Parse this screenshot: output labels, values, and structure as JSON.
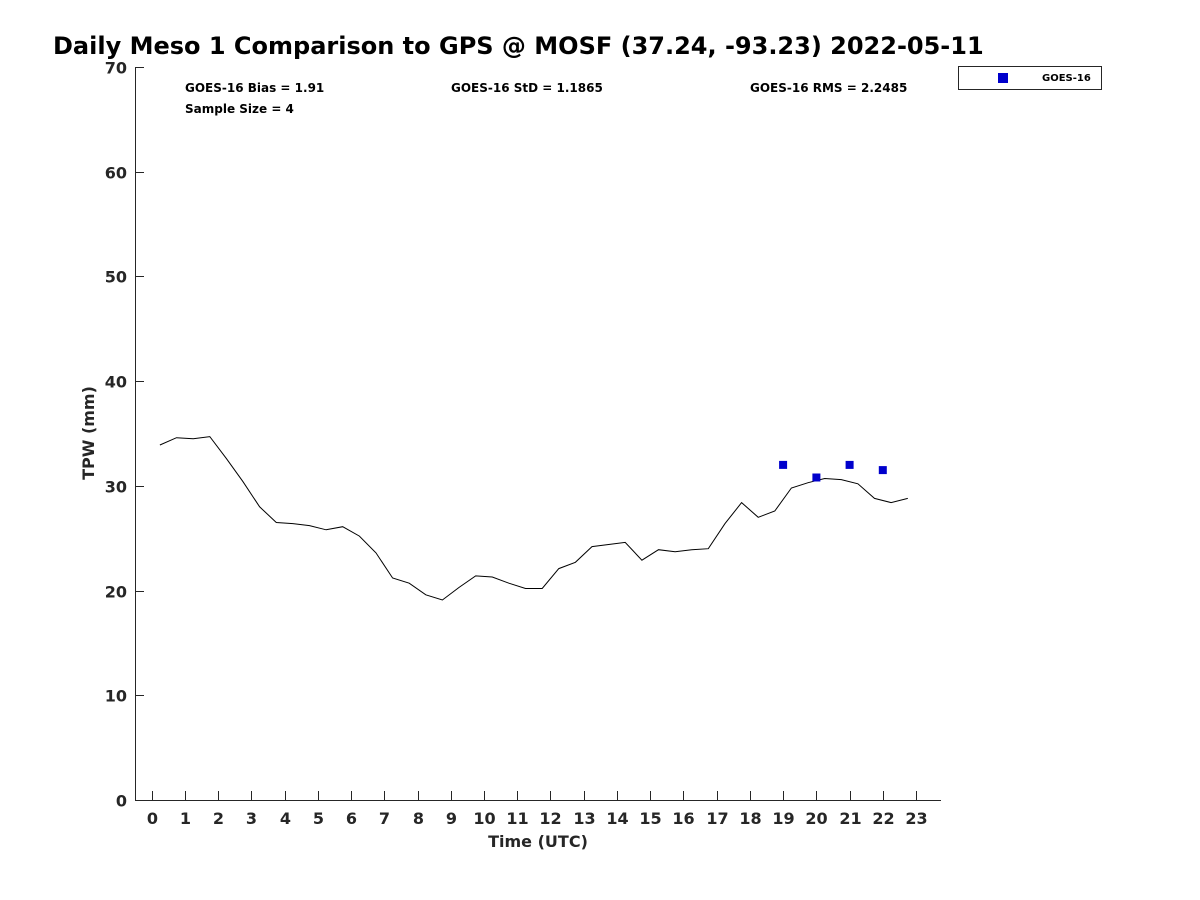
{
  "chart_data": {
    "type": "line",
    "title": "Daily Meso 1 Comparison to GPS @ MOSF (37.24, -93.23) 2022-05-11",
    "xlabel": "Time (UTC)",
    "ylabel": "TPW (mm)",
    "xlim": [
      -0.5,
      23.75
    ],
    "ylim": [
      0,
      70
    ],
    "x_ticks": [
      "0",
      "1",
      "2",
      "3",
      "4",
      "5",
      "6",
      "7",
      "8",
      "9",
      "10",
      "11",
      "12",
      "13",
      "14",
      "15",
      "16",
      "17",
      "18",
      "19",
      "20",
      "21",
      "22",
      "23"
    ],
    "y_ticks": [
      "0",
      "10",
      "20",
      "30",
      "40",
      "50",
      "60",
      "70"
    ],
    "stats": {
      "bias": "GOES-16 Bias = 1.91",
      "std": "GOES-16 StD = 1.1865",
      "rms": "GOES-16 RMS = 2.2485",
      "sample": "Sample Size = 4"
    },
    "legend": {
      "label": "GOES-16",
      "position": "top-right outside"
    },
    "series": [
      {
        "name": "GPS",
        "color": "#000000",
        "style": "line",
        "x": [
          0.25,
          0.75,
          1.25,
          1.75,
          2.25,
          2.75,
          3.25,
          3.75,
          4.25,
          4.75,
          5.25,
          5.75,
          6.25,
          6.75,
          7.25,
          7.75,
          8.25,
          8.75,
          9.25,
          9.75,
          10.25,
          10.75,
          11.25,
          11.75,
          12.25,
          12.75,
          13.25,
          13.75,
          14.25,
          14.75,
          15.25,
          15.75,
          16.25,
          16.75,
          17.25,
          17.75,
          18.25,
          18.75,
          19.25,
          19.75,
          20.25,
          20.75,
          21.25,
          21.75,
          22.25,
          22.75
        ],
        "y": [
          33.9,
          34.6,
          34.5,
          34.7,
          32.6,
          30.4,
          28.0,
          26.5,
          26.4,
          26.2,
          25.8,
          26.1,
          25.2,
          23.6,
          21.2,
          20.7,
          19.6,
          19.1,
          20.3,
          21.4,
          21.3,
          20.7,
          20.2,
          20.2,
          22.1,
          22.7,
          24.2,
          24.4,
          24.6,
          22.9,
          23.9,
          23.7,
          23.9,
          24.0,
          26.4,
          28.4,
          27.0,
          27.6,
          29.8,
          30.3,
          30.7,
          30.6,
          30.2,
          28.8,
          28.4,
          28.8
        ]
      },
      {
        "name": "GOES-16",
        "color": "#0000cc",
        "style": "marker",
        "x": [
          19,
          20,
          21,
          22
        ],
        "y": [
          32.0,
          30.8,
          32.0,
          31.5
        ]
      }
    ]
  }
}
